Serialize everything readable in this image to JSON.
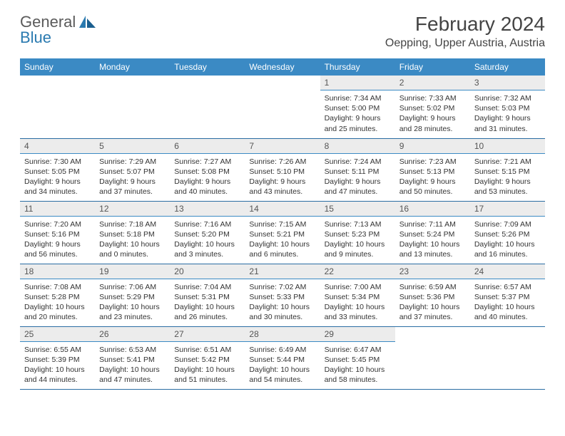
{
  "brand": {
    "part1": "General",
    "part2": "Blue"
  },
  "title": "February 2024",
  "location": "Oepping, Upper Austria, Austria",
  "colors": {
    "header_bg": "#3b8ac4",
    "header_text": "#ffffff",
    "daynum_bg": "#ececec",
    "row_divider": "#2a6da3",
    "logo_blue": "#2a7ab0",
    "logo_gray": "#5a5a5a",
    "page_bg": "#ffffff"
  },
  "weekdays": [
    "Sunday",
    "Monday",
    "Tuesday",
    "Wednesday",
    "Thursday",
    "Friday",
    "Saturday"
  ],
  "weeks": [
    [
      null,
      null,
      null,
      null,
      {
        "n": "1",
        "sunrise": "7:34 AM",
        "sunset": "5:00 PM",
        "daylight": "9 hours and 25 minutes."
      },
      {
        "n": "2",
        "sunrise": "7:33 AM",
        "sunset": "5:02 PM",
        "daylight": "9 hours and 28 minutes."
      },
      {
        "n": "3",
        "sunrise": "7:32 AM",
        "sunset": "5:03 PM",
        "daylight": "9 hours and 31 minutes."
      }
    ],
    [
      {
        "n": "4",
        "sunrise": "7:30 AM",
        "sunset": "5:05 PM",
        "daylight": "9 hours and 34 minutes."
      },
      {
        "n": "5",
        "sunrise": "7:29 AM",
        "sunset": "5:07 PM",
        "daylight": "9 hours and 37 minutes."
      },
      {
        "n": "6",
        "sunrise": "7:27 AM",
        "sunset": "5:08 PM",
        "daylight": "9 hours and 40 minutes."
      },
      {
        "n": "7",
        "sunrise": "7:26 AM",
        "sunset": "5:10 PM",
        "daylight": "9 hours and 43 minutes."
      },
      {
        "n": "8",
        "sunrise": "7:24 AM",
        "sunset": "5:11 PM",
        "daylight": "9 hours and 47 minutes."
      },
      {
        "n": "9",
        "sunrise": "7:23 AM",
        "sunset": "5:13 PM",
        "daylight": "9 hours and 50 minutes."
      },
      {
        "n": "10",
        "sunrise": "7:21 AM",
        "sunset": "5:15 PM",
        "daylight": "9 hours and 53 minutes."
      }
    ],
    [
      {
        "n": "11",
        "sunrise": "7:20 AM",
        "sunset": "5:16 PM",
        "daylight": "9 hours and 56 minutes."
      },
      {
        "n": "12",
        "sunrise": "7:18 AM",
        "sunset": "5:18 PM",
        "daylight": "10 hours and 0 minutes."
      },
      {
        "n": "13",
        "sunrise": "7:16 AM",
        "sunset": "5:20 PM",
        "daylight": "10 hours and 3 minutes."
      },
      {
        "n": "14",
        "sunrise": "7:15 AM",
        "sunset": "5:21 PM",
        "daylight": "10 hours and 6 minutes."
      },
      {
        "n": "15",
        "sunrise": "7:13 AM",
        "sunset": "5:23 PM",
        "daylight": "10 hours and 9 minutes."
      },
      {
        "n": "16",
        "sunrise": "7:11 AM",
        "sunset": "5:24 PM",
        "daylight": "10 hours and 13 minutes."
      },
      {
        "n": "17",
        "sunrise": "7:09 AM",
        "sunset": "5:26 PM",
        "daylight": "10 hours and 16 minutes."
      }
    ],
    [
      {
        "n": "18",
        "sunrise": "7:08 AM",
        "sunset": "5:28 PM",
        "daylight": "10 hours and 20 minutes."
      },
      {
        "n": "19",
        "sunrise": "7:06 AM",
        "sunset": "5:29 PM",
        "daylight": "10 hours and 23 minutes."
      },
      {
        "n": "20",
        "sunrise": "7:04 AM",
        "sunset": "5:31 PM",
        "daylight": "10 hours and 26 minutes."
      },
      {
        "n": "21",
        "sunrise": "7:02 AM",
        "sunset": "5:33 PM",
        "daylight": "10 hours and 30 minutes."
      },
      {
        "n": "22",
        "sunrise": "7:00 AM",
        "sunset": "5:34 PM",
        "daylight": "10 hours and 33 minutes."
      },
      {
        "n": "23",
        "sunrise": "6:59 AM",
        "sunset": "5:36 PM",
        "daylight": "10 hours and 37 minutes."
      },
      {
        "n": "24",
        "sunrise": "6:57 AM",
        "sunset": "5:37 PM",
        "daylight": "10 hours and 40 minutes."
      }
    ],
    [
      {
        "n": "25",
        "sunrise": "6:55 AM",
        "sunset": "5:39 PM",
        "daylight": "10 hours and 44 minutes."
      },
      {
        "n": "26",
        "sunrise": "6:53 AM",
        "sunset": "5:41 PM",
        "daylight": "10 hours and 47 minutes."
      },
      {
        "n": "27",
        "sunrise": "6:51 AM",
        "sunset": "5:42 PM",
        "daylight": "10 hours and 51 minutes."
      },
      {
        "n": "28",
        "sunrise": "6:49 AM",
        "sunset": "5:44 PM",
        "daylight": "10 hours and 54 minutes."
      },
      {
        "n": "29",
        "sunrise": "6:47 AM",
        "sunset": "5:45 PM",
        "daylight": "10 hours and 58 minutes."
      },
      null,
      null
    ]
  ],
  "labels": {
    "sunrise": "Sunrise:",
    "sunset": "Sunset:",
    "daylight": "Daylight:"
  }
}
